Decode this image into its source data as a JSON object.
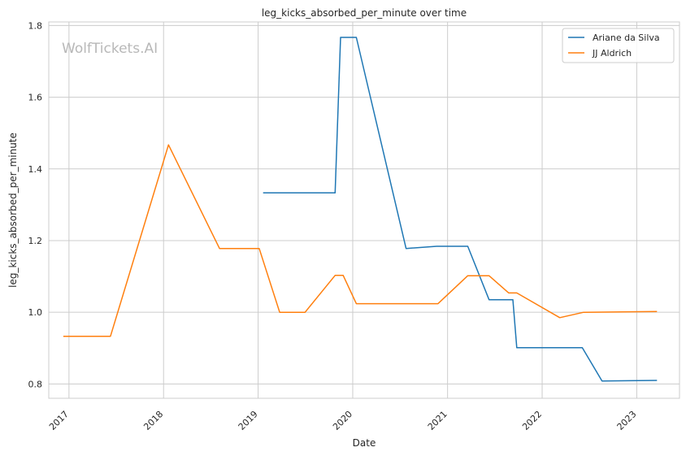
{
  "chart_data": {
    "type": "line",
    "title": "leg_kicks_absorbed_per_minute over time",
    "xlabel": "Date",
    "ylabel": "leg_kicks_absorbed_per_minute",
    "watermark": "WolfTickets.AI",
    "xlim": [
      "2016-10-15",
      "2023-06-15"
    ],
    "ylim": [
      0.76,
      1.81
    ],
    "x_ticks": [
      "2017",
      "2018",
      "2019",
      "2020",
      "2021",
      "2022",
      "2023"
    ],
    "y_ticks": [
      "0.8",
      "1.0",
      "1.2",
      "1.4",
      "1.6",
      "1.8"
    ],
    "grid": true,
    "legend": "top-right",
    "series": [
      {
        "name": "Ariane da Silva",
        "color": "#1f77b4",
        "points": [
          [
            "2019-01-20",
            1.333
          ],
          [
            "2019-10-25",
            1.333
          ],
          [
            "2019-11-15",
            1.767
          ],
          [
            "2020-01-15",
            1.767
          ],
          [
            "2020-07-25",
            1.178
          ],
          [
            "2020-11-20",
            1.184
          ],
          [
            "2021-03-20",
            1.184
          ],
          [
            "2021-06-10",
            1.035
          ],
          [
            "2021-09-10",
            1.035
          ],
          [
            "2021-09-25",
            0.901
          ],
          [
            "2022-06-05",
            0.901
          ],
          [
            "2022-08-20",
            0.808
          ],
          [
            "2023-03-20",
            0.81
          ]
        ]
      },
      {
        "name": "JJ Aldrich",
        "color": "#ff7f0e",
        "points": [
          [
            "2016-12-10",
            0.933
          ],
          [
            "2017-06-10",
            0.933
          ],
          [
            "2018-01-20",
            1.467
          ],
          [
            "2018-08-05",
            1.178
          ],
          [
            "2019-01-05",
            1.178
          ],
          [
            "2019-03-25",
            1.0
          ],
          [
            "2019-07-01",
            1.0
          ],
          [
            "2019-10-25",
            1.103
          ],
          [
            "2019-11-25",
            1.103
          ],
          [
            "2020-01-15",
            1.024
          ],
          [
            "2020-11-25",
            1.024
          ],
          [
            "2021-03-20",
            1.102
          ],
          [
            "2021-06-10",
            1.102
          ],
          [
            "2021-08-25",
            1.054
          ],
          [
            "2021-09-25",
            1.054
          ],
          [
            "2022-03-10",
            0.985
          ],
          [
            "2022-06-10",
            1.0
          ],
          [
            "2023-03-20",
            1.002
          ]
        ]
      }
    ]
  }
}
